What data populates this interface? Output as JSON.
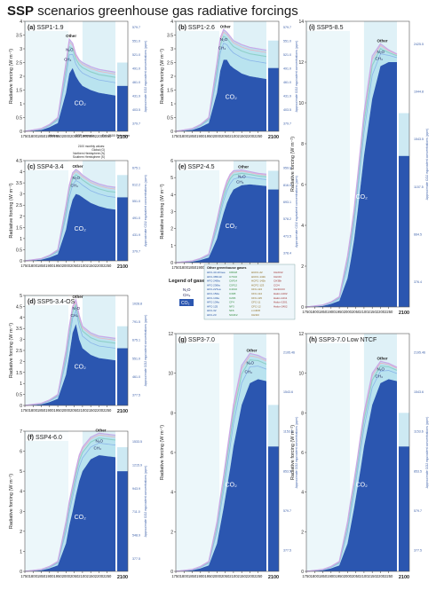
{
  "title_bold": "SSP",
  "title_rest": "scenarios greenhouse gas radiative forcings",
  "colors": {
    "co2_fill": "#2b56b0",
    "other_ghg_fill": "#e8d8a0",
    "ch4_line": "#8ab4e8",
    "n2o_line": "#8fd0c8",
    "total_line": "#3a3a3a",
    "bg_history": "#ffffff",
    "bg_ssp": "#dff1f7",
    "bg_ext": "#cde9f3"
  },
  "legend_title": "Legend of gases:",
  "legend_gases": [
    "N2O",
    "CH4",
    "CO2"
  ],
  "legend_box_title": "Other greenhouse gases",
  "legend_columns": [
    [
      "HFC-43-10mee",
      "HFC-365mfc",
      "HFC-245fa",
      "HFC-236fa",
      "HFC-227ea",
      "HFC-152a",
      "HFC-143a",
      "HFC-134a",
      "HFC-125",
      "HFC-32",
      "HFC-23"
    ],
    [
      "C8F18",
      "C7F16",
      "C6F14",
      "C5F12",
      "C4F10",
      "C3F8",
      "C2F6",
      "CF4",
      "NF3",
      "SF6",
      "SO2F2"
    ],
    [
      "HCFC-22",
      "HCFC-141b",
      "HCFC-142b",
      "HCFC-123",
      "CFC-113",
      "CFC-114",
      "CFC-115",
      "CFC-11",
      "CFC-12",
      "c-C4F8",
      "CH3Cl"
    ],
    [
      "CH2Cl2",
      "CHCl3",
      "CH3Br",
      "CCl4",
      "CH3CCl3",
      "Halon-1202",
      "Halon-1211",
      "Halon-1301",
      "Halon-2402",
      ""
    ]
  ],
  "ext_note": [
    "2100 monthly values:",
    "Global (G)",
    "Northern Hemisphere (N)",
    "Southern Hemisphere (S)"
  ],
  "ext_legend": [
    "History",
    "SSP scenario",
    "Ext. 2100 Extension"
  ],
  "chart_data": [
    {
      "type": "area",
      "id": "a",
      "panel_label": "(a)",
      "scenario": "SSP1-1.9",
      "ylabel": "Radiative forcing (W m⁻²)",
      "ylim": [
        0,
        4
      ],
      "yticks": [
        0,
        0.5,
        1,
        1.5,
        2,
        2.5,
        3,
        3.5,
        4
      ],
      "x": [
        1750,
        1800,
        1850,
        1900,
        1950,
        2000,
        2020,
        2040,
        2060,
        2080,
        2100,
        2150,
        2200,
        2250,
        2300
      ],
      "co2": [
        0,
        0.02,
        0.05,
        0.15,
        0.3,
        1.4,
        2.1,
        2.3,
        2.0,
        1.8,
        1.65,
        1.5,
        1.4,
        1.35,
        1.3
      ],
      "total": [
        0,
        0.05,
        0.1,
        0.25,
        0.5,
        2.5,
        3.35,
        3.2,
        2.8,
        2.6,
        2.5,
        2.35,
        2.25,
        2.2,
        2.15
      ],
      "labels": [
        "Other",
        "N2O",
        "CH4",
        "CO2"
      ],
      "right_ticks": [
        "379.7",
        "403.5",
        "431.9",
        "461.0",
        "491.0",
        "521.0",
        "551.0",
        "579.7"
      ],
      "right_label": "Approximate CO2 equivalent concentrations (ppm)"
    },
    {
      "type": "area",
      "id": "b",
      "panel_label": "(b)",
      "scenario": "SSP1-2.6",
      "ylabel": "Radiative forcing (W m⁻²)",
      "ylim": [
        0,
        4
      ],
      "yticks": [
        0,
        0.5,
        1,
        1.5,
        2,
        2.5,
        3,
        3.5,
        4
      ],
      "x": [
        1750,
        1800,
        1850,
        1900,
        1950,
        2000,
        2020,
        2040,
        2060,
        2080,
        2100,
        2150,
        2200,
        2250,
        2300
      ],
      "co2": [
        0,
        0.02,
        0.05,
        0.15,
        0.3,
        1.4,
        2.2,
        2.6,
        2.6,
        2.4,
        2.3,
        2.1,
        2.0,
        1.95,
        1.9
      ],
      "total": [
        0,
        0.05,
        0.1,
        0.25,
        0.5,
        2.5,
        3.4,
        3.7,
        3.6,
        3.45,
        3.3,
        3.15,
        3.05,
        3.0,
        2.95
      ],
      "labels": [
        "Other",
        "N2O",
        "CH4",
        "CO2"
      ],
      "right_ticks": [
        "379.7",
        "403.5",
        "431.9",
        "461.0",
        "491.0",
        "521.0",
        "551.0",
        "579.7"
      ],
      "right_label": "Approximate CO2 equivalent concentrations (ppm)"
    },
    {
      "type": "area",
      "id": "i",
      "panel_label": "(i)",
      "scenario": "SSP5-8.5",
      "ylabel": "Radiative forcing (W m⁻²)",
      "ylim": [
        0,
        14
      ],
      "yticks": [
        0,
        2,
        4,
        6,
        8,
        10,
        12,
        14
      ],
      "x": [
        1750,
        1800,
        1850,
        1900,
        1950,
        2000,
        2020,
        2040,
        2060,
        2080,
        2100,
        2150,
        2200,
        2250,
        2300
      ],
      "co2": [
        0,
        0.02,
        0.05,
        0.15,
        0.3,
        1.4,
        2.3,
        3.3,
        4.6,
        6.0,
        7.4,
        10.2,
        11.8,
        12.0,
        12.0
      ],
      "total": [
        0,
        0.05,
        0.1,
        0.25,
        0.5,
        2.5,
        3.6,
        4.8,
        6.3,
        7.9,
        9.5,
        12.3,
        12.9,
        12.6,
        12.4
      ],
      "labels": [
        "Other",
        "N2O",
        "CH4",
        "CO2"
      ],
      "right_ticks": [
        "376.4",
        "664.5",
        "1157.5",
        "1543.5",
        "1944.8",
        "2425.5"
      ],
      "right_label": "Approximate CO2 equivalent concentrations (ppm)"
    },
    {
      "type": "area",
      "id": "c",
      "panel_label": "(c)",
      "scenario": "SSP4-3.4",
      "ylabel": "Radiative forcing (W m⁻²)",
      "ylim": [
        0,
        4.5
      ],
      "yticks": [
        0,
        0.5,
        1,
        1.5,
        2,
        2.5,
        3,
        3.5,
        4,
        4.5
      ],
      "x": [
        1750,
        1800,
        1850,
        1900,
        1950,
        2000,
        2020,
        2040,
        2060,
        2080,
        2100,
        2150,
        2200,
        2250,
        2300
      ],
      "co2": [
        0,
        0.02,
        0.05,
        0.15,
        0.3,
        1.4,
        2.2,
        2.75,
        3.0,
        2.95,
        2.85,
        2.6,
        2.45,
        2.35,
        2.3
      ],
      "total": [
        0,
        0.05,
        0.1,
        0.25,
        0.5,
        2.5,
        3.4,
        3.95,
        4.1,
        4.0,
        3.85,
        3.6,
        3.45,
        3.35,
        3.3
      ],
      "labels": [
        "Other",
        "N2O",
        "CH4",
        "CO2"
      ],
      "right_ticks": [
        "379.7",
        "431.9",
        "491.0",
        "551.0",
        "612.2",
        "675.1"
      ],
      "right_label": "Approximate CO2 equivalent concentrations (ppm)"
    },
    {
      "type": "area",
      "id": "e",
      "panel_label": "(e)",
      "scenario": "SSP2-4.5",
      "ylabel": "Radiative forcing (W m⁻²)",
      "ylim": [
        0,
        6
      ],
      "yticks": [
        0,
        1,
        2,
        3,
        4,
        5,
        6
      ],
      "x": [
        1750,
        1800,
        1850,
        1900,
        1950,
        2000,
        2020,
        2040,
        2060,
        2080,
        2100,
        2150,
        2200,
        2250,
        2300
      ],
      "co2": [
        0,
        0.02,
        0.05,
        0.15,
        0.3,
        1.4,
        2.2,
        2.9,
        3.5,
        3.95,
        4.3,
        4.55,
        4.6,
        4.55,
        4.5
      ],
      "total": [
        0,
        0.05,
        0.1,
        0.25,
        0.5,
        2.5,
        3.4,
        4.2,
        4.8,
        5.2,
        5.4,
        5.45,
        5.35,
        5.25,
        5.2
      ],
      "labels": [
        "Other",
        "N2O",
        "CH4",
        "CO2"
      ],
      "right_ticks": [
        "378.4",
        "473.5",
        "578.2",
        "693.1",
        "816.0",
        "959.9"
      ],
      "right_label": "Approximate CO2 equivalent concentrations (ppm)"
    },
    {
      "type": "area",
      "id": "d",
      "panel_label": "(d)",
      "scenario": "SSP5-3.4-OS",
      "ylabel": "Radiative forcing (W m⁻²)",
      "ylim": [
        0,
        5
      ],
      "yticks": [
        0,
        0.5,
        1,
        1.5,
        2,
        2.5,
        3,
        3.5,
        4,
        4.5,
        5
      ],
      "x": [
        1750,
        1800,
        1850,
        1900,
        1950,
        2000,
        2020,
        2040,
        2060,
        2080,
        2100,
        2150,
        2200,
        2250,
        2300
      ],
      "co2": [
        0,
        0.02,
        0.05,
        0.15,
        0.3,
        1.4,
        2.3,
        3.3,
        3.7,
        3.0,
        2.6,
        2.3,
        2.15,
        2.1,
        2.05
      ],
      "total": [
        0,
        0.05,
        0.1,
        0.25,
        0.5,
        2.5,
        3.6,
        4.5,
        4.8,
        4.1,
        3.6,
        3.3,
        3.15,
        3.1,
        3.05
      ],
      "labels": [
        "Other",
        "N2O",
        "CH4",
        "CO2"
      ],
      "right_ticks": [
        "377.5",
        "461.0",
        "551.0",
        "675.1",
        "791.5",
        "1028.8"
      ],
      "right_label": "Approximate CO2 equivalent concentrations (ppm)"
    },
    {
      "type": "area",
      "id": "g",
      "panel_label": "(g)",
      "scenario": "SSP3-7.0",
      "ylabel": "Radiative forcing (W m⁻²)",
      "ylim": [
        0,
        12
      ],
      "yticks": [
        0,
        2,
        4,
        6,
        8,
        10,
        12
      ],
      "x": [
        1750,
        1800,
        1850,
        1900,
        1950,
        2000,
        2020,
        2040,
        2060,
        2080,
        2100,
        2150,
        2200,
        2250,
        2300
      ],
      "co2": [
        0,
        0.02,
        0.05,
        0.15,
        0.3,
        1.4,
        2.3,
        3.2,
        4.2,
        5.2,
        6.3,
        8.4,
        9.5,
        9.7,
        9.6
      ],
      "total": [
        0,
        0.05,
        0.1,
        0.25,
        0.5,
        2.5,
        3.7,
        4.8,
        6.0,
        7.2,
        8.4,
        10.4,
        11.0,
        10.9,
        10.7
      ],
      "labels": [
        "Other",
        "N2O",
        "CH4",
        "CO2"
      ],
      "right_ticks": [
        "377.5",
        "579.7",
        "853.5",
        "1153.6",
        "1543.6",
        "2195.46"
      ],
      "right_label": "Approximate CO2 equivalent concentrations (ppm)"
    },
    {
      "type": "area",
      "id": "h",
      "panel_label": "(h)",
      "scenario": "SSP3-7.0 Low NTCF",
      "ylabel": "Radiative forcing (W m⁻²)",
      "ylim": [
        0,
        12
      ],
      "yticks": [
        0,
        2,
        4,
        6,
        8,
        10,
        12
      ],
      "x": [
        1750,
        1800,
        1850,
        1900,
        1950,
        2000,
        2020,
        2040,
        2060,
        2080,
        2100,
        2150,
        2200,
        2250,
        2300
      ],
      "co2": [
        0,
        0.02,
        0.05,
        0.15,
        0.3,
        1.4,
        2.3,
        3.2,
        4.2,
        5.2,
        6.3,
        8.4,
        9.5,
        9.7,
        9.6
      ],
      "total": [
        0,
        0.05,
        0.1,
        0.25,
        0.5,
        2.5,
        3.6,
        4.6,
        5.7,
        6.9,
        8.0,
        10.0,
        10.6,
        10.5,
        10.3
      ],
      "labels": [
        "Other",
        "N2O",
        "CH4",
        "CO2"
      ],
      "right_ticks": [
        "377.5",
        "579.7",
        "853.5",
        "1153.6",
        "1543.6",
        "2195.46"
      ],
      "right_label": "Approximate CO2 equivalent concentrations (ppm)"
    },
    {
      "type": "area",
      "id": "f",
      "panel_label": "(f)",
      "scenario": "SSP4-6.0",
      "ylabel": "Radiative forcing (W m⁻²)",
      "ylim": [
        0,
        7
      ],
      "yticks": [
        0,
        1,
        2,
        3,
        4,
        5,
        6,
        7
      ],
      "x": [
        1750,
        1800,
        1850,
        1900,
        1950,
        2000,
        2020,
        2040,
        2060,
        2080,
        2100,
        2150,
        2200,
        2250,
        2300
      ],
      "co2": [
        0,
        0.02,
        0.05,
        0.15,
        0.3,
        1.4,
        2.3,
        3.0,
        3.8,
        4.5,
        5.0,
        5.6,
        5.8,
        5.75,
        5.7
      ],
      "total": [
        0,
        0.05,
        0.1,
        0.25,
        0.5,
        2.5,
        3.5,
        4.3,
        5.1,
        5.8,
        6.2,
        6.7,
        6.9,
        6.85,
        6.8
      ],
      "labels": [
        "Other",
        "N2O",
        "CH4",
        "CO2"
      ],
      "right_ticks": [
        "377.5",
        "548.9",
        "711.0",
        "943.9",
        "1215.9",
        "1533.5"
      ],
      "right_label": "Approximate CO2 equivalent concentrations (ppm)"
    }
  ],
  "x_ticks": [
    1750,
    1800,
    1850,
    1900,
    1950,
    2000,
    2050,
    2100,
    2150,
    2200,
    2250
  ],
  "ext_tick": "2100"
}
